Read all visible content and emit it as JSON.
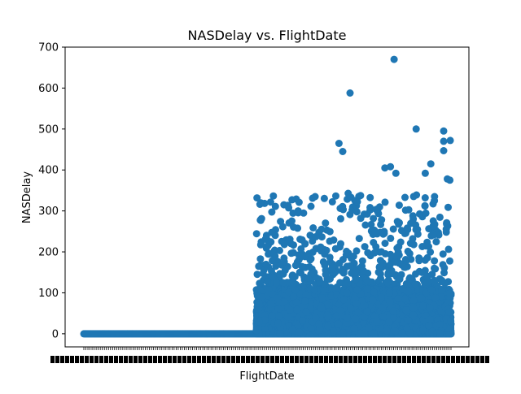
{
  "chart_data": {
    "type": "scatter",
    "title": "NASDelay vs. FlightDate",
    "xlabel": "FlightDate",
    "ylabel": "NASDelay",
    "ylim": [
      -32,
      700
    ],
    "yticks": [
      0,
      100,
      200,
      300,
      400,
      500,
      600,
      700
    ],
    "grid": false,
    "legend": "none",
    "color": "#1f77b4",
    "x_category_count": 180,
    "zero_region_fraction": 0.47,
    "notable_points": [
      {
        "x_frac": 0.845,
        "y": 670
      },
      {
        "x_frac": 0.725,
        "y": 588
      },
      {
        "x_frac": 0.695,
        "y": 465
      },
      {
        "x_frac": 0.705,
        "y": 445
      },
      {
        "x_frac": 0.905,
        "y": 500
      },
      {
        "x_frac": 0.98,
        "y": 495
      },
      {
        "x_frac": 0.98,
        "y": 470
      },
      {
        "x_frac": 0.98,
        "y": 447
      },
      {
        "x_frac": 0.998,
        "y": 472
      },
      {
        "x_frac": 0.945,
        "y": 415
      },
      {
        "x_frac": 0.82,
        "y": 405
      },
      {
        "x_frac": 0.835,
        "y": 408
      },
      {
        "x_frac": 0.85,
        "y": 392
      },
      {
        "x_frac": 0.93,
        "y": 392
      },
      {
        "x_frac": 0.99,
        "y": 378
      },
      {
        "x_frac": 0.997,
        "y": 375
      },
      {
        "x_frac": 0.545,
        "y": 315
      },
      {
        "x_frac": 0.63,
        "y": 335
      },
      {
        "x_frac": 0.72,
        "y": 343
      },
      {
        "x_frac": 0.745,
        "y": 322
      }
    ]
  }
}
